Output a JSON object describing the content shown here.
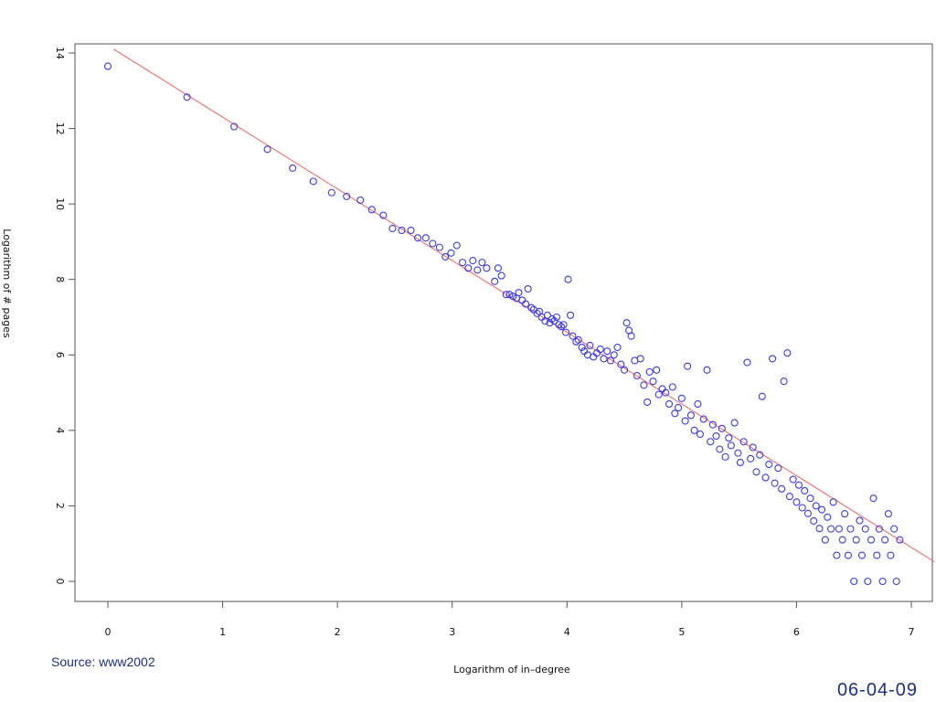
{
  "source_label": "Source: www2002",
  "date_label": "06-04-09",
  "colors": {
    "points": "#3b3bf0",
    "fit_line": "#f07a7a",
    "axis": "#555555",
    "text": "#1c2f8c"
  },
  "chart_data": {
    "type": "scatter",
    "title": "",
    "xlabel": "Logarithm of in–degree",
    "ylabel": "Logarithm of # pages",
    "xlim": [
      0,
      7
    ],
    "ylim": [
      0,
      14
    ],
    "x_ticks": [
      "0",
      "1",
      "2",
      "3",
      "4",
      "5",
      "6",
      "7"
    ],
    "y_ticks": [
      "0",
      "2",
      "4",
      "6",
      "8",
      "10",
      "12",
      "14"
    ],
    "grid": false,
    "legend": "none",
    "fit_line": {
      "intercept": 14.2,
      "slope": -1.9
    },
    "series": [
      {
        "marker": "open-circle",
        "points": [
          [
            0.0,
            13.65
          ],
          [
            0.69,
            12.83
          ],
          [
            1.1,
            12.05
          ],
          [
            1.39,
            11.45
          ],
          [
            1.61,
            10.95
          ],
          [
            1.79,
            10.6
          ],
          [
            1.95,
            10.3
          ],
          [
            2.08,
            10.2
          ],
          [
            2.2,
            10.1
          ],
          [
            2.3,
            9.85
          ],
          [
            2.4,
            9.7
          ],
          [
            2.48,
            9.35
          ],
          [
            2.56,
            9.3
          ],
          [
            2.64,
            9.3
          ],
          [
            2.7,
            9.1
          ],
          [
            2.77,
            9.1
          ],
          [
            2.83,
            8.95
          ],
          [
            2.89,
            8.85
          ],
          [
            2.94,
            8.6
          ],
          [
            2.99,
            8.7
          ],
          [
            3.04,
            8.9
          ],
          [
            3.09,
            8.45
          ],
          [
            3.14,
            8.3
          ],
          [
            3.18,
            8.5
          ],
          [
            3.22,
            8.25
          ],
          [
            3.26,
            8.45
          ],
          [
            3.3,
            8.3
          ],
          [
            3.37,
            7.95
          ],
          [
            3.4,
            8.3
          ],
          [
            3.43,
            8.1
          ],
          [
            3.47,
            7.6
          ],
          [
            3.5,
            7.6
          ],
          [
            3.53,
            7.55
          ],
          [
            3.56,
            7.5
          ],
          [
            3.58,
            7.65
          ],
          [
            3.61,
            7.45
          ],
          [
            3.64,
            7.35
          ],
          [
            3.66,
            7.75
          ],
          [
            3.69,
            7.25
          ],
          [
            3.71,
            7.2
          ],
          [
            3.74,
            7.1
          ],
          [
            3.76,
            7.15
          ],
          [
            3.78,
            7.0
          ],
          [
            3.81,
            6.9
          ],
          [
            3.83,
            7.05
          ],
          [
            3.85,
            6.85
          ],
          [
            3.87,
            6.95
          ],
          [
            3.89,
            6.9
          ],
          [
            3.91,
            7.0
          ],
          [
            3.93,
            6.8
          ],
          [
            3.95,
            6.75
          ],
          [
            3.97,
            6.8
          ],
          [
            3.99,
            6.6
          ],
          [
            4.01,
            8.0
          ],
          [
            4.03,
            7.05
          ],
          [
            4.05,
            6.5
          ],
          [
            4.08,
            6.35
          ],
          [
            4.1,
            6.4
          ],
          [
            4.13,
            6.2
          ],
          [
            4.15,
            6.1
          ],
          [
            4.18,
            6.0
          ],
          [
            4.2,
            6.25
          ],
          [
            4.23,
            5.95
          ],
          [
            4.26,
            6.05
          ],
          [
            4.29,
            6.15
          ],
          [
            4.32,
            5.9
          ],
          [
            4.35,
            6.1
          ],
          [
            4.38,
            5.85
          ],
          [
            4.41,
            6.0
          ],
          [
            4.44,
            6.2
          ],
          [
            4.47,
            5.75
          ],
          [
            4.5,
            5.6
          ],
          [
            4.52,
            6.85
          ],
          [
            4.54,
            6.65
          ],
          [
            4.56,
            6.5
          ],
          [
            4.59,
            5.85
          ],
          [
            4.61,
            5.45
          ],
          [
            4.64,
            5.9
          ],
          [
            4.67,
            5.2
          ],
          [
            4.7,
            4.75
          ],
          [
            4.72,
            5.55
          ],
          [
            4.75,
            5.3
          ],
          [
            4.78,
            5.6
          ],
          [
            4.8,
            4.95
          ],
          [
            4.83,
            5.1
          ],
          [
            4.86,
            5.0
          ],
          [
            4.89,
            4.7
          ],
          [
            4.92,
            5.15
          ],
          [
            4.94,
            4.45
          ],
          [
            4.97,
            4.6
          ],
          [
            5.0,
            4.85
          ],
          [
            5.03,
            4.25
          ],
          [
            5.05,
            5.7
          ],
          [
            5.08,
            4.4
          ],
          [
            5.11,
            4.0
          ],
          [
            5.14,
            4.7
          ],
          [
            5.16,
            3.9
          ],
          [
            5.19,
            4.3
          ],
          [
            5.22,
            5.6
          ],
          [
            5.25,
            3.7
          ],
          [
            5.27,
            4.15
          ],
          [
            5.3,
            3.85
          ],
          [
            5.33,
            3.5
          ],
          [
            5.35,
            4.05
          ],
          [
            5.38,
            3.3
          ],
          [
            5.41,
            3.8
          ],
          [
            5.43,
            3.6
          ],
          [
            5.46,
            4.2
          ],
          [
            5.49,
            3.4
          ],
          [
            5.51,
            3.15
          ],
          [
            5.54,
            3.7
          ],
          [
            5.57,
            5.8
          ],
          [
            5.6,
            3.25
          ],
          [
            5.62,
            3.55
          ],
          [
            5.65,
            2.9
          ],
          [
            5.68,
            3.35
          ],
          [
            5.7,
            4.9
          ],
          [
            5.73,
            2.75
          ],
          [
            5.76,
            3.1
          ],
          [
            5.79,
            5.9
          ],
          [
            5.81,
            2.6
          ],
          [
            5.84,
            3.0
          ],
          [
            5.87,
            2.45
          ],
          [
            5.89,
            5.3
          ],
          [
            5.92,
            6.05
          ],
          [
            5.94,
            2.25
          ],
          [
            5.97,
            2.7
          ],
          [
            6.0,
            2.1
          ],
          [
            6.02,
            2.55
          ],
          [
            6.05,
            1.95
          ],
          [
            6.07,
            2.4
          ],
          [
            6.1,
            1.8
          ],
          [
            6.12,
            2.2
          ],
          [
            6.15,
            1.6
          ],
          [
            6.17,
            2.0
          ],
          [
            6.2,
            1.4
          ],
          [
            6.22,
            1.9
          ],
          [
            6.25,
            1.1
          ],
          [
            6.27,
            1.7
          ],
          [
            6.3,
            1.39
          ],
          [
            6.32,
            2.1
          ],
          [
            6.35,
            0.69
          ],
          [
            6.37,
            1.39
          ],
          [
            6.4,
            1.1
          ],
          [
            6.42,
            1.79
          ],
          [
            6.45,
            0.69
          ],
          [
            6.47,
            1.39
          ],
          [
            6.5,
            0.0
          ],
          [
            6.52,
            1.1
          ],
          [
            6.55,
            1.61
          ],
          [
            6.57,
            0.69
          ],
          [
            6.6,
            1.39
          ],
          [
            6.62,
            0.0
          ],
          [
            6.65,
            1.1
          ],
          [
            6.67,
            2.2
          ],
          [
            6.7,
            0.69
          ],
          [
            6.72,
            1.39
          ],
          [
            6.75,
            0.0
          ],
          [
            6.77,
            1.1
          ],
          [
            6.8,
            1.79
          ],
          [
            6.82,
            0.69
          ],
          [
            6.85,
            1.39
          ],
          [
            6.87,
            0.0
          ],
          [
            6.9,
            1.1
          ]
        ]
      }
    ]
  }
}
